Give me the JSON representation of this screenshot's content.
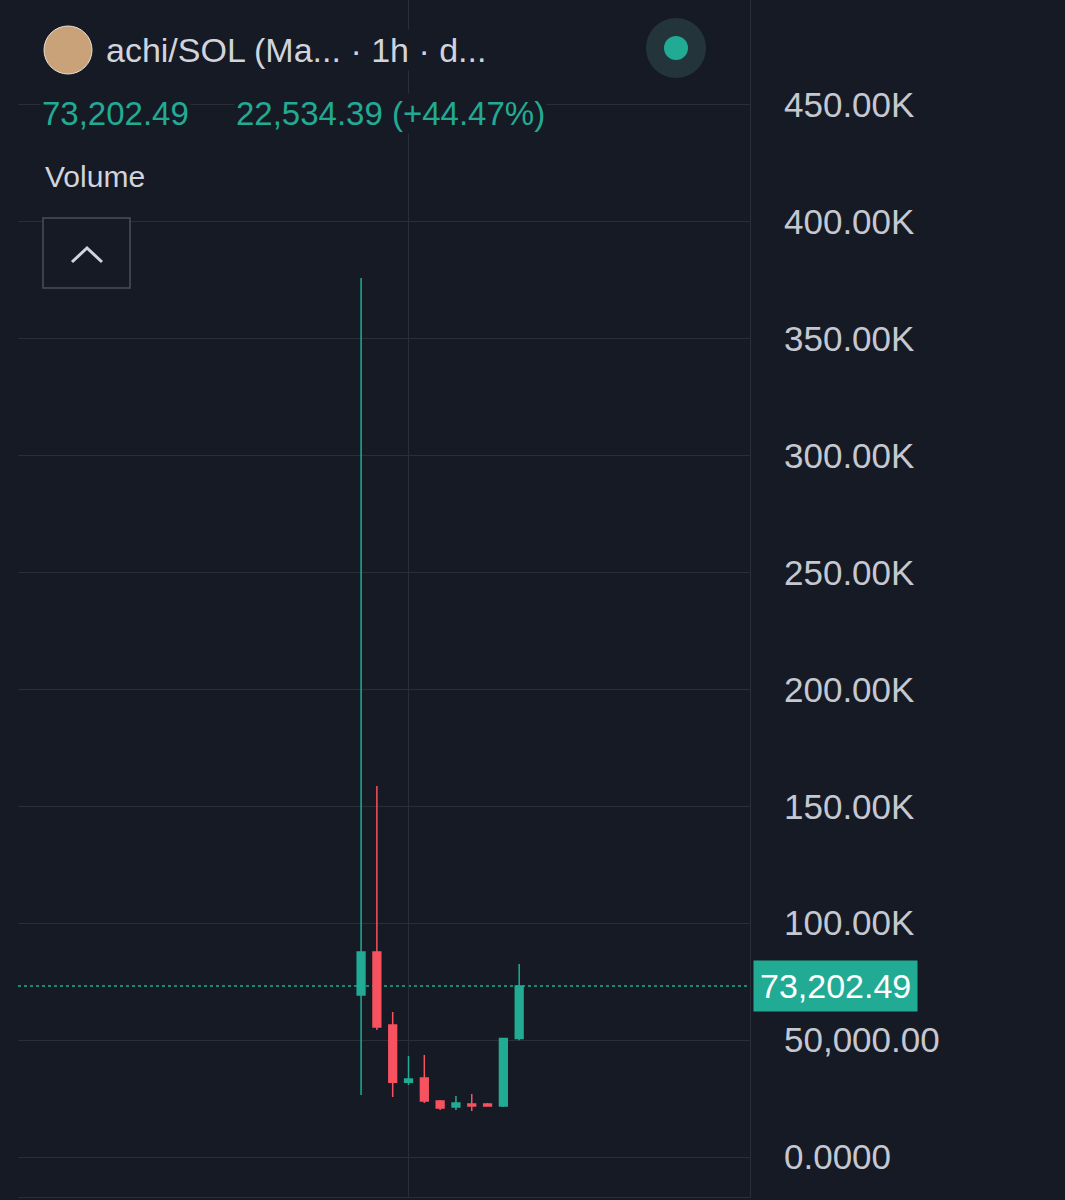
{
  "chart_data": {
    "type": "candlestick",
    "title": "achi/SOL (Ma... · 1h · d...",
    "annotations": [
      "73,202.49",
      "22,534.39 (+44.47%)",
      "Volume"
    ],
    "x": [
      0,
      1,
      2,
      3,
      4,
      5,
      6,
      7,
      8,
      9,
      10
    ],
    "open": [
      69300,
      87700,
      56500,
      32000,
      33800,
      24000,
      21400,
      22700,
      22700,
      21800,
      50668.1
    ],
    "high": [
      376000,
      158700,
      62000,
      43200,
      43600,
      24400,
      26100,
      27000,
      23100,
      50668.1,
      82600
    ],
    "low": [
      26500,
      54300,
      25700,
      30800,
      23100,
      20100,
      20100,
      19700,
      21800,
      21400,
      50000
    ],
    "close": [
      87700,
      55600,
      32000,
      33400,
      24000,
      21000,
      23100,
      21800,
      21800,
      50668.1,
      73202.49
    ],
    "colors": [
      "#22ab94",
      "#f7525f",
      "#f7525f",
      "#22ab94",
      "#f7525f",
      "#f7525f",
      "#22ab94",
      "#f7525f",
      "#f7525f",
      "#22ab94",
      "#22ab94"
    ],
    "xlim": [
      -21.7,
      24.6
    ],
    "xticks": [
      3
    ],
    "ylim": [
      -17100,
      494900
    ],
    "yticks": [
      {
        "value": 0,
        "label": "0.0000"
      },
      {
        "value": 50000,
        "label": "50,000.00"
      },
      {
        "value": 100000,
        "label": "100.00K"
      },
      {
        "value": 150000,
        "label": "150.00K"
      },
      {
        "value": 200000,
        "label": "200.00K"
      },
      {
        "value": 250000,
        "label": "250.00K"
      },
      {
        "value": 300000,
        "label": "300.00K"
      },
      {
        "value": 350000,
        "label": "350.00K"
      },
      {
        "value": 400000,
        "label": "400.00K"
      },
      {
        "value": 450000,
        "label": "450.00K"
      }
    ],
    "grid": true,
    "tick_labels": "y",
    "price_label": {
      "value": 73202.49,
      "label": "73,202.49"
    }
  }
}
